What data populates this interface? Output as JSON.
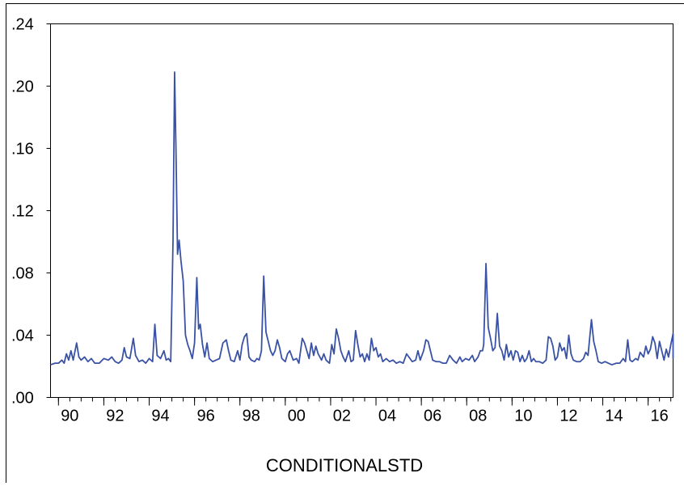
{
  "chart_data": {
    "type": "line",
    "xlabel": "CONDITIONALSTD",
    "ylim": [
      0.0,
      0.24
    ],
    "xlim": [
      1989.65,
      2017.1
    ],
    "y_ticks": [
      {
        "value": 0.0,
        "label": ".00"
      },
      {
        "value": 0.04,
        "label": ".04"
      },
      {
        "value": 0.08,
        "label": ".08"
      },
      {
        "value": 0.12,
        "label": ".12"
      },
      {
        "value": 0.16,
        "label": ".16"
      },
      {
        "value": 0.2,
        "label": ".20"
      },
      {
        "value": 0.24,
        "label": ".24"
      }
    ],
    "x_ticks": [
      {
        "value": 1990,
        "label": "90"
      },
      {
        "value": 1992,
        "label": "92"
      },
      {
        "value": 1994,
        "label": "94"
      },
      {
        "value": 1996,
        "label": "96"
      },
      {
        "value": 1998,
        "label": "98"
      },
      {
        "value": 2000,
        "label": "00"
      },
      {
        "value": 2002,
        "label": "02"
      },
      {
        "value": 2004,
        "label": "04"
      },
      {
        "value": 2006,
        "label": "06"
      },
      {
        "value": 2008,
        "label": "08"
      },
      {
        "value": 2010,
        "label": "10"
      },
      {
        "value": 2012,
        "label": "12"
      },
      {
        "value": 2014,
        "label": "14"
      },
      {
        "value": 2016,
        "label": "16"
      }
    ],
    "line_color": "#3a52a6",
    "series": [
      {
        "points": [
          [
            1989.65,
            0.021
          ],
          [
            1989.85,
            0.022
          ],
          [
            1990.0,
            0.022
          ],
          [
            1990.15,
            0.024
          ],
          [
            1990.25,
            0.022
          ],
          [
            1990.35,
            0.028
          ],
          [
            1990.45,
            0.024
          ],
          [
            1990.55,
            0.03
          ],
          [
            1990.65,
            0.024
          ],
          [
            1990.8,
            0.035
          ],
          [
            1990.9,
            0.026
          ],
          [
            1991.0,
            0.024
          ],
          [
            1991.15,
            0.026
          ],
          [
            1991.3,
            0.023
          ],
          [
            1991.45,
            0.025
          ],
          [
            1991.6,
            0.022
          ],
          [
            1991.8,
            0.022
          ],
          [
            1992.0,
            0.025
          ],
          [
            1992.2,
            0.024
          ],
          [
            1992.35,
            0.026
          ],
          [
            1992.5,
            0.023
          ],
          [
            1992.65,
            0.022
          ],
          [
            1992.8,
            0.024
          ],
          [
            1992.9,
            0.032
          ],
          [
            1993.0,
            0.026
          ],
          [
            1993.15,
            0.025
          ],
          [
            1993.3,
            0.038
          ],
          [
            1993.4,
            0.027
          ],
          [
            1993.55,
            0.023
          ],
          [
            1993.7,
            0.024
          ],
          [
            1993.85,
            0.022
          ],
          [
            1994.0,
            0.025
          ],
          [
            1994.15,
            0.023
          ],
          [
            1994.25,
            0.047
          ],
          [
            1994.35,
            0.027
          ],
          [
            1994.5,
            0.025
          ],
          [
            1994.65,
            0.03
          ],
          [
            1994.75,
            0.024
          ],
          [
            1994.85,
            0.025
          ],
          [
            1994.95,
            0.023
          ],
          [
            1995.05,
            0.1
          ],
          [
            1995.12,
            0.209
          ],
          [
            1995.18,
            0.16
          ],
          [
            1995.25,
            0.092
          ],
          [
            1995.32,
            0.101
          ],
          [
            1995.4,
            0.088
          ],
          [
            1995.5,
            0.075
          ],
          [
            1995.6,
            0.04
          ],
          [
            1995.7,
            0.034
          ],
          [
            1995.8,
            0.03
          ],
          [
            1995.9,
            0.025
          ],
          [
            1996.0,
            0.035
          ],
          [
            1996.1,
            0.077
          ],
          [
            1996.18,
            0.044
          ],
          [
            1996.25,
            0.047
          ],
          [
            1996.35,
            0.034
          ],
          [
            1996.45,
            0.026
          ],
          [
            1996.55,
            0.035
          ],
          [
            1996.65,
            0.025
          ],
          [
            1996.8,
            0.023
          ],
          [
            1996.95,
            0.024
          ],
          [
            1997.1,
            0.025
          ],
          [
            1997.25,
            0.035
          ],
          [
            1997.4,
            0.037
          ],
          [
            1997.5,
            0.03
          ],
          [
            1997.6,
            0.024
          ],
          [
            1997.75,
            0.023
          ],
          [
            1997.9,
            0.03
          ],
          [
            1998.0,
            0.024
          ],
          [
            1998.1,
            0.034
          ],
          [
            1998.2,
            0.039
          ],
          [
            1998.3,
            0.041
          ],
          [
            1998.4,
            0.026
          ],
          [
            1998.5,
            0.024
          ],
          [
            1998.65,
            0.023
          ],
          [
            1998.75,
            0.025
          ],
          [
            1998.85,
            0.024
          ],
          [
            1998.95,
            0.03
          ],
          [
            1999.05,
            0.078
          ],
          [
            1999.15,
            0.042
          ],
          [
            1999.25,
            0.036
          ],
          [
            1999.35,
            0.03
          ],
          [
            1999.45,
            0.027
          ],
          [
            1999.55,
            0.03
          ],
          [
            1999.65,
            0.037
          ],
          [
            1999.75,
            0.032
          ],
          [
            1999.85,
            0.025
          ],
          [
            2000.0,
            0.023
          ],
          [
            2000.1,
            0.028
          ],
          [
            2000.2,
            0.03
          ],
          [
            2000.35,
            0.024
          ],
          [
            2000.5,
            0.025
          ],
          [
            2000.6,
            0.022
          ],
          [
            2000.75,
            0.038
          ],
          [
            2000.85,
            0.035
          ],
          [
            2000.95,
            0.03
          ],
          [
            2001.05,
            0.025
          ],
          [
            2001.15,
            0.035
          ],
          [
            2001.25,
            0.027
          ],
          [
            2001.35,
            0.033
          ],
          [
            2001.45,
            0.028
          ],
          [
            2001.6,
            0.024
          ],
          [
            2001.7,
            0.028
          ],
          [
            2001.8,
            0.024
          ],
          [
            2001.95,
            0.022
          ],
          [
            2002.05,
            0.034
          ],
          [
            2002.15,
            0.028
          ],
          [
            2002.25,
            0.044
          ],
          [
            2002.35,
            0.038
          ],
          [
            2002.45,
            0.03
          ],
          [
            2002.55,
            0.026
          ],
          [
            2002.65,
            0.023
          ],
          [
            2002.8,
            0.03
          ],
          [
            2002.9,
            0.023
          ],
          [
            2003.0,
            0.024
          ],
          [
            2003.1,
            0.043
          ],
          [
            2003.2,
            0.034
          ],
          [
            2003.3,
            0.026
          ],
          [
            2003.4,
            0.028
          ],
          [
            2003.5,
            0.023
          ],
          [
            2003.6,
            0.028
          ],
          [
            2003.7,
            0.024
          ],
          [
            2003.8,
            0.038
          ],
          [
            2003.9,
            0.03
          ],
          [
            2004.0,
            0.032
          ],
          [
            2004.1,
            0.026
          ],
          [
            2004.2,
            0.028
          ],
          [
            2004.3,
            0.023
          ],
          [
            2004.45,
            0.025
          ],
          [
            2004.6,
            0.023
          ],
          [
            2004.75,
            0.024
          ],
          [
            2004.9,
            0.022
          ],
          [
            2005.05,
            0.023
          ],
          [
            2005.2,
            0.022
          ],
          [
            2005.35,
            0.028
          ],
          [
            2005.5,
            0.025
          ],
          [
            2005.6,
            0.023
          ],
          [
            2005.75,
            0.024
          ],
          [
            2005.85,
            0.03
          ],
          [
            2005.95,
            0.024
          ],
          [
            2006.1,
            0.03
          ],
          [
            2006.2,
            0.037
          ],
          [
            2006.3,
            0.036
          ],
          [
            2006.4,
            0.03
          ],
          [
            2006.5,
            0.024
          ],
          [
            2006.65,
            0.023
          ],
          [
            2006.8,
            0.023
          ],
          [
            2006.95,
            0.022
          ],
          [
            2007.1,
            0.022
          ],
          [
            2007.25,
            0.027
          ],
          [
            2007.4,
            0.024
          ],
          [
            2007.55,
            0.022
          ],
          [
            2007.7,
            0.026
          ],
          [
            2007.8,
            0.023
          ],
          [
            2007.95,
            0.025
          ],
          [
            2008.1,
            0.024
          ],
          [
            2008.25,
            0.027
          ],
          [
            2008.35,
            0.023
          ],
          [
            2008.5,
            0.026
          ],
          [
            2008.6,
            0.03
          ],
          [
            2008.7,
            0.03
          ],
          [
            2008.75,
            0.034
          ],
          [
            2008.85,
            0.086
          ],
          [
            2008.95,
            0.045
          ],
          [
            2009.05,
            0.038
          ],
          [
            2009.15,
            0.03
          ],
          [
            2009.25,
            0.032
          ],
          [
            2009.35,
            0.054
          ],
          [
            2009.45,
            0.033
          ],
          [
            2009.55,
            0.03
          ],
          [
            2009.65,
            0.024
          ],
          [
            2009.75,
            0.034
          ],
          [
            2009.85,
            0.026
          ],
          [
            2009.95,
            0.03
          ],
          [
            2010.05,
            0.024
          ],
          [
            2010.15,
            0.03
          ],
          [
            2010.25,
            0.029
          ],
          [
            2010.35,
            0.023
          ],
          [
            2010.45,
            0.027
          ],
          [
            2010.55,
            0.023
          ],
          [
            2010.65,
            0.025
          ],
          [
            2010.75,
            0.03
          ],
          [
            2010.85,
            0.023
          ],
          [
            2010.95,
            0.025
          ],
          [
            2011.05,
            0.023
          ],
          [
            2011.2,
            0.023
          ],
          [
            2011.35,
            0.022
          ],
          [
            2011.5,
            0.024
          ],
          [
            2011.6,
            0.039
          ],
          [
            2011.7,
            0.038
          ],
          [
            2011.8,
            0.033
          ],
          [
            2011.9,
            0.024
          ],
          [
            2012.0,
            0.026
          ],
          [
            2012.1,
            0.035
          ],
          [
            2012.2,
            0.03
          ],
          [
            2012.3,
            0.032
          ],
          [
            2012.4,
            0.025
          ],
          [
            2012.5,
            0.04
          ],
          [
            2012.6,
            0.028
          ],
          [
            2012.7,
            0.024
          ],
          [
            2012.85,
            0.023
          ],
          [
            2013.0,
            0.023
          ],
          [
            2013.15,
            0.025
          ],
          [
            2013.25,
            0.029
          ],
          [
            2013.35,
            0.027
          ],
          [
            2013.5,
            0.05
          ],
          [
            2013.6,
            0.036
          ],
          [
            2013.7,
            0.03
          ],
          [
            2013.8,
            0.023
          ],
          [
            2013.95,
            0.022
          ],
          [
            2014.1,
            0.023
          ],
          [
            2014.25,
            0.022
          ],
          [
            2014.4,
            0.021
          ],
          [
            2014.6,
            0.022
          ],
          [
            2014.75,
            0.022
          ],
          [
            2014.9,
            0.025
          ],
          [
            2015.0,
            0.023
          ],
          [
            2015.1,
            0.037
          ],
          [
            2015.2,
            0.024
          ],
          [
            2015.3,
            0.023
          ],
          [
            2015.45,
            0.025
          ],
          [
            2015.55,
            0.024
          ],
          [
            2015.65,
            0.029
          ],
          [
            2015.8,
            0.026
          ],
          [
            2015.9,
            0.033
          ],
          [
            2016.0,
            0.028
          ],
          [
            2016.1,
            0.031
          ],
          [
            2016.2,
            0.039
          ],
          [
            2016.3,
            0.035
          ],
          [
            2016.4,
            0.025
          ],
          [
            2016.5,
            0.036
          ],
          [
            2016.6,
            0.03
          ],
          [
            2016.7,
            0.024
          ],
          [
            2016.8,
            0.031
          ],
          [
            2016.9,
            0.026
          ],
          [
            2017.0,
            0.034
          ],
          [
            2017.1,
            0.041
          ],
          [
            2017.2,
            0.03
          ],
          [
            2017.3,
            0.025
          ]
        ]
      }
    ]
  }
}
